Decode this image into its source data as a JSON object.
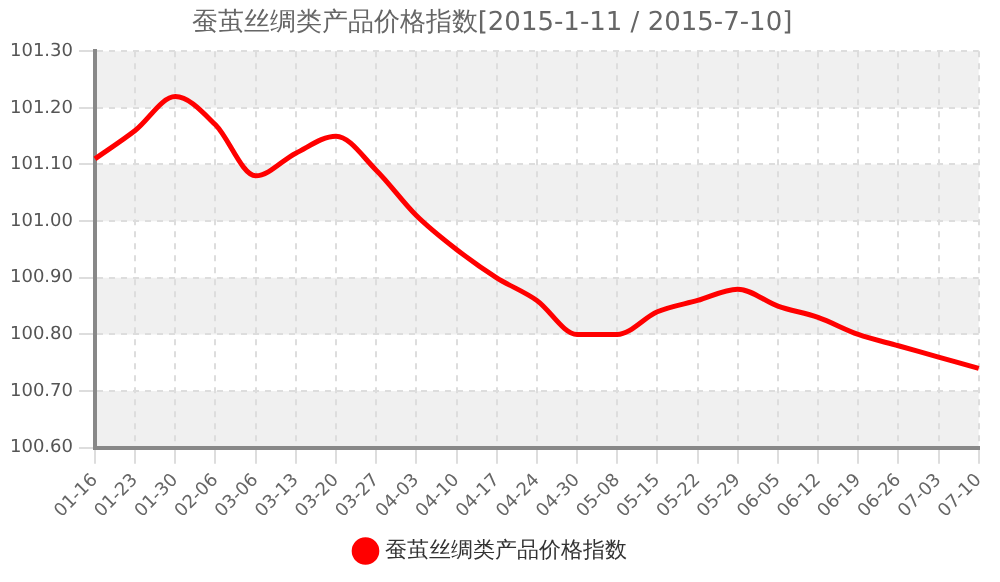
{
  "chart_data": {
    "type": "line",
    "title": "蚕茧丝绸类产品价格指数[2015-1-11 / 2015-7-10]",
    "categories": [
      "01-16",
      "01-23",
      "01-30",
      "02-06",
      "03-06",
      "03-13",
      "03-20",
      "03-27",
      "04-03",
      "04-10",
      "04-17",
      "04-24",
      "04-30",
      "05-08",
      "05-15",
      "05-22",
      "05-29",
      "06-05",
      "06-12",
      "06-19",
      "06-26",
      "07-03",
      "07-10"
    ],
    "series": [
      {
        "name": "蚕茧丝绸类产品价格指数",
        "color": "#ff0000",
        "values": [
          101.11,
          101.16,
          101.22,
          101.17,
          101.08,
          101.12,
          101.15,
          101.09,
          101.01,
          100.95,
          100.9,
          100.86,
          100.8,
          100.8,
          100.84,
          100.86,
          100.88,
          100.85,
          100.83,
          100.8,
          100.78,
          100.76,
          100.74
        ]
      }
    ],
    "ylim": [
      100.6,
      101.3
    ],
    "yticks": [
      {
        "value": 100.6,
        "label": "100.60"
      },
      {
        "value": 100.7,
        "label": "100.70"
      },
      {
        "value": 100.8,
        "label": "100.80"
      },
      {
        "value": 100.9,
        "label": "100.90"
      },
      {
        "value": 101.0,
        "label": "101.00"
      },
      {
        "value": 101.1,
        "label": "101.10"
      },
      {
        "value": 101.2,
        "label": "101.20"
      },
      {
        "value": 101.3,
        "label": "101.30"
      }
    ],
    "grid": true,
    "legend": "bottom",
    "marker": "none",
    "line_style": "solid"
  }
}
